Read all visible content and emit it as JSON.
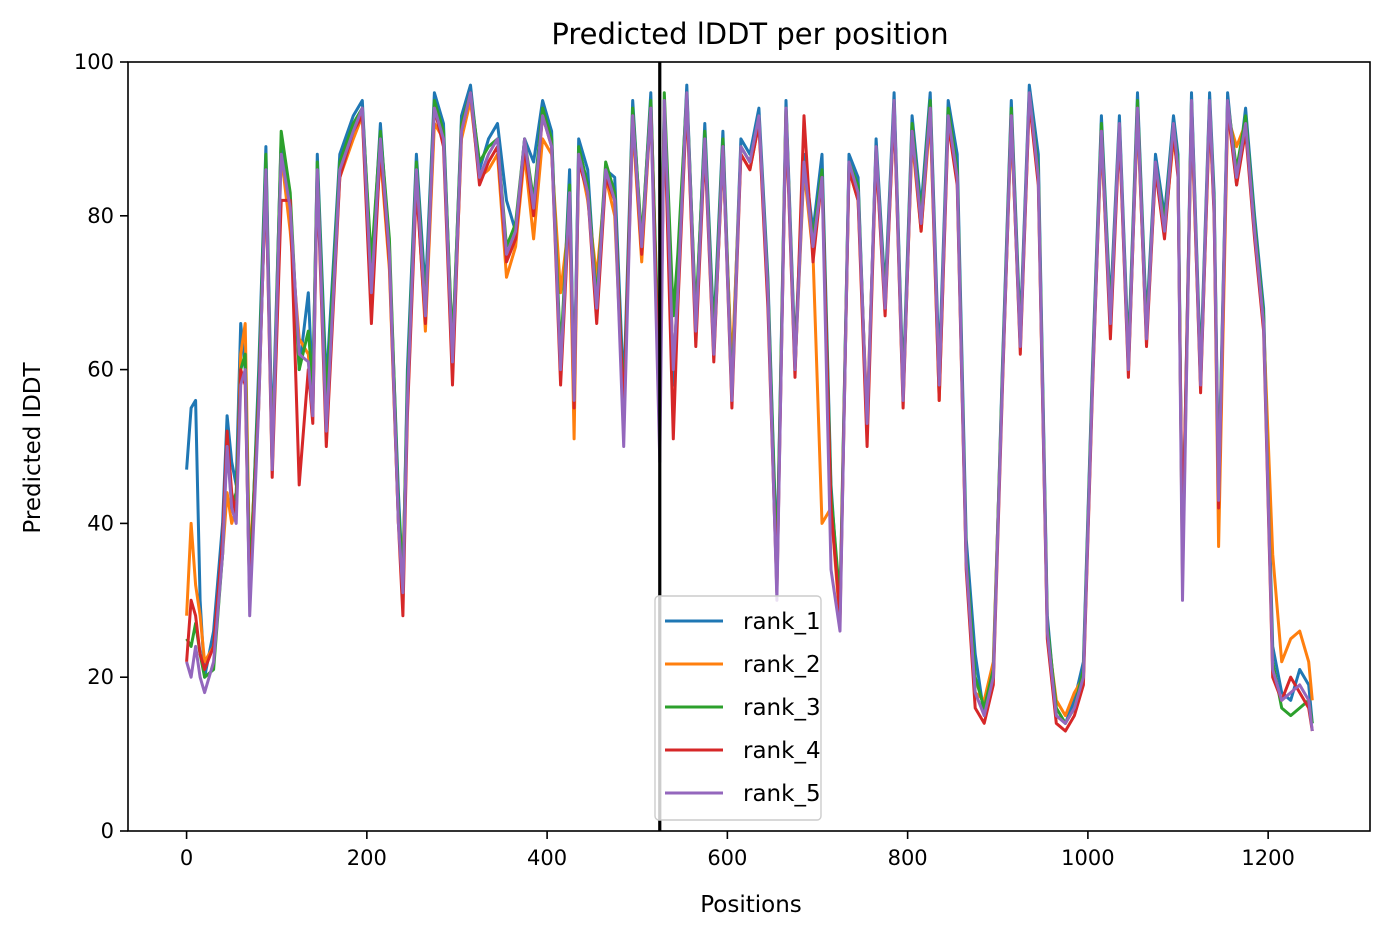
{
  "chart_data": {
    "type": "line",
    "title": "Predicted lDDT per position",
    "xlabel": "Positions",
    "ylabel": "Predicted lDDT",
    "xlim": [
      -65,
      1313
    ],
    "ylim": [
      0,
      100
    ],
    "x_ticks": [
      0,
      200,
      400,
      600,
      800,
      1000,
      1200
    ],
    "y_ticks": [
      0,
      20,
      40,
      60,
      80,
      100
    ],
    "grid": false,
    "legend_position": "lower-center",
    "vertical_line": {
      "x": 525,
      "color": "#000000"
    },
    "series_x": [
      0,
      5,
      10,
      15,
      20,
      30,
      40,
      45,
      50,
      55,
      60,
      65,
      70,
      80,
      88,
      95,
      105,
      115,
      125,
      135,
      140,
      145,
      155,
      170,
      185,
      195,
      205,
      215,
      225,
      235,
      240,
      245,
      255,
      265,
      275,
      285,
      295,
      305,
      315,
      325,
      335,
      345,
      355,
      365,
      375,
      385,
      395,
      405,
      415,
      425,
      430,
      435,
      445,
      455,
      465,
      475,
      485,
      495,
      505,
      515,
      525,
      530,
      540,
      545,
      555,
      565,
      575,
      585,
      595,
      605,
      615,
      625,
      635,
      645,
      655,
      665,
      675,
      685,
      695,
      705,
      715,
      725,
      735,
      745,
      755,
      765,
      775,
      785,
      795,
      805,
      815,
      825,
      835,
      845,
      855,
      865,
      875,
      885,
      895,
      905,
      915,
      925,
      935,
      945,
      955,
      965,
      975,
      985,
      995,
      1005,
      1015,
      1025,
      1035,
      1045,
      1055,
      1065,
      1075,
      1085,
      1095,
      1100,
      1105,
      1115,
      1125,
      1135,
      1140,
      1145,
      1155,
      1165,
      1175,
      1185,
      1195,
      1205,
      1215,
      1225,
      1235,
      1245,
      1249
    ],
    "series": [
      {
        "name": "rank_1",
        "color": "#1f77b4",
        "values": [
          47,
          55,
          56,
          30,
          20,
          26,
          40,
          54,
          48,
          45,
          66,
          60,
          30,
          60,
          89,
          50,
          90,
          82,
          60,
          70,
          57,
          88,
          58,
          88,
          93,
          95,
          72,
          92,
          75,
          44,
          32,
          60,
          88,
          70,
          96,
          92,
          62,
          93,
          97,
          86,
          90,
          92,
          82,
          78,
          90,
          87,
          95,
          91,
          60,
          86,
          57,
          90,
          86,
          68,
          86,
          85,
          57,
          95,
          76,
          96,
          55,
          95,
          58,
          72,
          97,
          66,
          92,
          65,
          91,
          58,
          90,
          88,
          94,
          72,
          35,
          95,
          62,
          88,
          78,
          88,
          45,
          28,
          88,
          85,
          52,
          90,
          70,
          96,
          58,
          93,
          81,
          96,
          60,
          95,
          88,
          38,
          23,
          15,
          20,
          60,
          95,
          65,
          97,
          88,
          28,
          15,
          14,
          17,
          22,
          60,
          93,
          68,
          93,
          62,
          96,
          66,
          88,
          80,
          93,
          88,
          35,
          96,
          60,
          96,
          83,
          45,
          96,
          84,
          94,
          80,
          68,
          24,
          18,
          17,
          21,
          19,
          14
        ]
      },
      {
        "name": "rank_2",
        "color": "#ff7f0e",
        "values": [
          28,
          40,
          32,
          28,
          22,
          24,
          36,
          44,
          40,
          42,
          62,
          66,
          34,
          55,
          86,
          48,
          88,
          78,
          64,
          62,
          55,
          86,
          54,
          85,
          90,
          93,
          70,
          88,
          73,
          40,
          35,
          55,
          85,
          65,
          92,
          90,
          60,
          90,
          95,
          85,
          86,
          88,
          72,
          76,
          88,
          77,
          90,
          88,
          70,
          80,
          51,
          88,
          82,
          72,
          85,
          80,
          54,
          92,
          74,
          94,
          56,
          94,
          60,
          70,
          95,
          65,
          90,
          62,
          88,
          60,
          88,
          86,
          92,
          70,
          32,
          94,
          60,
          86,
          75,
          40,
          42,
          27,
          86,
          82,
          54,
          88,
          68,
          94,
          56,
          90,
          78,
          93,
          56,
          93,
          85,
          35,
          18,
          17,
          22,
          58,
          92,
          63,
          95,
          85,
          26,
          17,
          15,
          18,
          20,
          58,
          90,
          66,
          91,
          60,
          93,
          64,
          86,
          78,
          90,
          86,
          33,
          93,
          58,
          93,
          81,
          37,
          93,
          89,
          92,
          78,
          66,
          36,
          22,
          25,
          26,
          22,
          17
        ]
      },
      {
        "name": "rank_3",
        "color": "#2ca02c",
        "values": [
          25,
          24,
          27,
          23,
          20,
          21,
          36,
          52,
          42,
          44,
          60,
          62,
          32,
          58,
          88,
          47,
          91,
          83,
          60,
          65,
          58,
          87,
          56,
          87,
          92,
          94,
          74,
          91,
          77,
          42,
          33,
          58,
          87,
          68,
          95,
          91,
          63,
          92,
          96,
          87,
          89,
          90,
          76,
          79,
          90,
          82,
          94,
          90,
          62,
          84,
          56,
          89,
          84,
          69,
          87,
          83,
          55,
          94,
          77,
          95,
          58,
          96,
          67,
          75,
          96,
          67,
          91,
          64,
          90,
          57,
          89,
          87,
          93,
          71,
          34,
          94,
          61,
          87,
          77,
          86,
          44,
          30,
          87,
          84,
          52,
          89,
          69,
          95,
          57,
          92,
          80,
          95,
          58,
          94,
          86,
          36,
          20,
          16,
          21,
          59,
          94,
          64,
          96,
          86,
          27,
          16,
          14,
          16,
          21,
          59,
          92,
          67,
          92,
          61,
          95,
          65,
          87,
          79,
          92,
          87,
          34,
          95,
          59,
          95,
          82,
          44,
          95,
          86,
          93,
          79,
          67,
          22,
          16,
          15,
          16,
          17,
          14
        ]
      },
      {
        "name": "rank_4",
        "color": "#d62728",
        "values": [
          22,
          30,
          28,
          23,
          21,
          24,
          38,
          52,
          44,
          41,
          60,
          58,
          30,
          56,
          85,
          46,
          82,
          82,
          45,
          60,
          53,
          85,
          50,
          85,
          91,
          93,
          66,
          89,
          74,
          40,
          28,
          54,
          84,
          66,
          94,
          89,
          58,
          91,
          96,
          84,
          87,
          89,
          74,
          77,
          89,
          80,
          93,
          89,
          58,
          82,
          55,
          87,
          83,
          66,
          85,
          82,
          54,
          93,
          75,
          94,
          54,
          94,
          51,
          68,
          95,
          63,
          89,
          61,
          89,
          55,
          88,
          86,
          92,
          68,
          31,
          93,
          59,
          93,
          74,
          85,
          42,
          28,
          86,
          82,
          50,
          88,
          67,
          94,
          55,
          91,
          78,
          94,
          56,
          92,
          84,
          34,
          16,
          14,
          19,
          57,
          93,
          62,
          95,
          84,
          25,
          14,
          13,
          15,
          19,
          57,
          91,
          64,
          91,
          59,
          94,
          63,
          86,
          77,
          91,
          85,
          36,
          94,
          57,
          94,
          80,
          42,
          94,
          84,
          91,
          77,
          65,
          20,
          17,
          20,
          18,
          16,
          13
        ]
      },
      {
        "name": "rank_5",
        "color": "#9467bd",
        "values": [
          22,
          20,
          24,
          20,
          18,
          22,
          36,
          50,
          42,
          40,
          58,
          60,
          28,
          55,
          86,
          47,
          88,
          81,
          62,
          61,
          54,
          86,
          52,
          86,
          91,
          94,
          70,
          90,
          75,
          40,
          31,
          56,
          86,
          67,
          94,
          90,
          61,
          91,
          96,
          85,
          88,
          90,
          75,
          78,
          90,
          81,
          93,
          89,
          60,
          83,
          56,
          88,
          83,
          68,
          86,
          82,
          50,
          93,
          76,
          94,
          48,
          95,
          60,
          70,
          96,
          65,
          90,
          62,
          89,
          56,
          89,
          87,
          93,
          70,
          30,
          94,
          60,
          87,
          76,
          85,
          34,
          26,
          87,
          83,
          53,
          89,
          68,
          95,
          56,
          91,
          79,
          94,
          58,
          93,
          85,
          35,
          18,
          15,
          20,
          58,
          93,
          63,
          96,
          85,
          26,
          15,
          14,
          16,
          20,
          58,
          91,
          66,
          92,
          60,
          94,
          64,
          87,
          78,
          92,
          86,
          30,
          95,
          58,
          95,
          81,
          43,
          95,
          85,
          92,
          78,
          66,
          21,
          17,
          18,
          19,
          17,
          13
        ]
      }
    ]
  }
}
